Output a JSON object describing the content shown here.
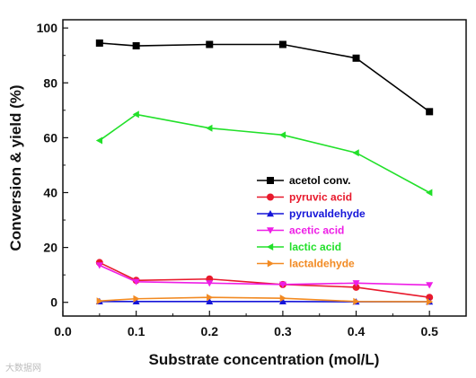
{
  "chart_data": {
    "type": "line",
    "title": "",
    "xlabel": "Substrate concentration (mol/L)",
    "ylabel": "Conversion & yield (%)",
    "xlim": [
      0.0,
      0.55
    ],
    "ylim": [
      -5,
      103
    ],
    "xticks": [
      0.0,
      0.1,
      0.2,
      0.3,
      0.4,
      0.5
    ],
    "xtick_labels": [
      "0.0",
      "0.1",
      "0.2",
      "0.3",
      "0.4",
      "0.5"
    ],
    "yticks": [
      0,
      20,
      40,
      60,
      80,
      100
    ],
    "ytick_labels": [
      "0",
      "20",
      "40",
      "60",
      "80",
      "100"
    ],
    "grid": false,
    "legend_position": "center-right",
    "x": [
      0.05,
      0.1,
      0.2,
      0.3,
      0.4,
      0.5
    ],
    "series": [
      {
        "name": "acetol conv.",
        "marker": "square",
        "color": "#000000",
        "values": [
          94.5,
          93.5,
          94.0,
          94.0,
          89.0,
          69.5
        ]
      },
      {
        "name": "pyruvic acid",
        "marker": "circle",
        "color": "#e8192c",
        "values": [
          14.5,
          8.0,
          8.5,
          6.5,
          5.5,
          1.8
        ]
      },
      {
        "name": "pyruvaldehyde",
        "marker": "triangle-up",
        "color": "#1515d9",
        "values": [
          0.3,
          0.3,
          0.3,
          0.3,
          0.2,
          0.2
        ]
      },
      {
        "name": "acetic acid",
        "marker": "triangle-down",
        "color": "#ee1de6",
        "values": [
          13.5,
          7.5,
          7.0,
          6.5,
          7.0,
          6.3
        ]
      },
      {
        "name": "lactic acid",
        "marker": "triangle-left",
        "color": "#22e02a",
        "values": [
          59.0,
          68.5,
          63.5,
          61.0,
          54.5,
          40.0
        ]
      },
      {
        "name": "lactaldehyde",
        "marker": "triangle-right",
        "color": "#f28a22",
        "values": [
          0.5,
          1.3,
          1.8,
          1.5,
          0.3,
          0.2
        ]
      }
    ]
  },
  "watermark": "大数据网"
}
